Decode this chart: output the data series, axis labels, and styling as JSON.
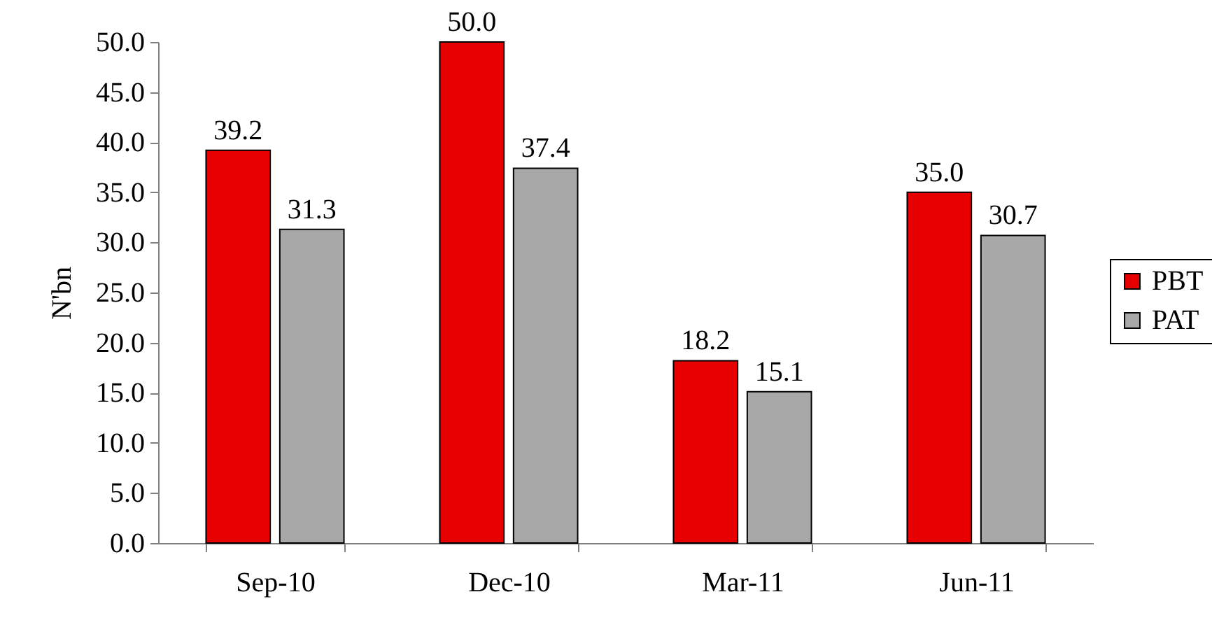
{
  "chart_data": {
    "type": "bar",
    "ylabel": "N'bn",
    "categories": [
      "Sep-10",
      "Dec-10",
      "Mar-11",
      "Jun-11"
    ],
    "series": [
      {
        "name": "PBT",
        "color": "#e60000",
        "values": [
          39.2,
          50.0,
          18.2,
          35.0
        ],
        "value_labels": [
          "39.2",
          "50.0",
          "18.2",
          "35.0"
        ]
      },
      {
        "name": "PAT",
        "color": "#a8a8a8",
        "values": [
          31.3,
          37.4,
          15.1,
          30.7
        ],
        "value_labels": [
          "31.3",
          "37.4",
          "15.1",
          "30.7"
        ]
      }
    ],
    "ylim": [
      0,
      50
    ],
    "yticks": [
      {
        "value": 0,
        "label": "0.0"
      },
      {
        "value": 5,
        "label": "5.0"
      },
      {
        "value": 10,
        "label": "10.0"
      },
      {
        "value": 15,
        "label": "15.0"
      },
      {
        "value": 20,
        "label": "20.0"
      },
      {
        "value": 25,
        "label": "25.0"
      },
      {
        "value": 30,
        "label": "30.0"
      },
      {
        "value": 35,
        "label": "35.0"
      },
      {
        "value": 40,
        "label": "40.0"
      },
      {
        "value": 45,
        "label": "45.0"
      },
      {
        "value": 50,
        "label": "50.0"
      }
    ],
    "legend": "right"
  }
}
